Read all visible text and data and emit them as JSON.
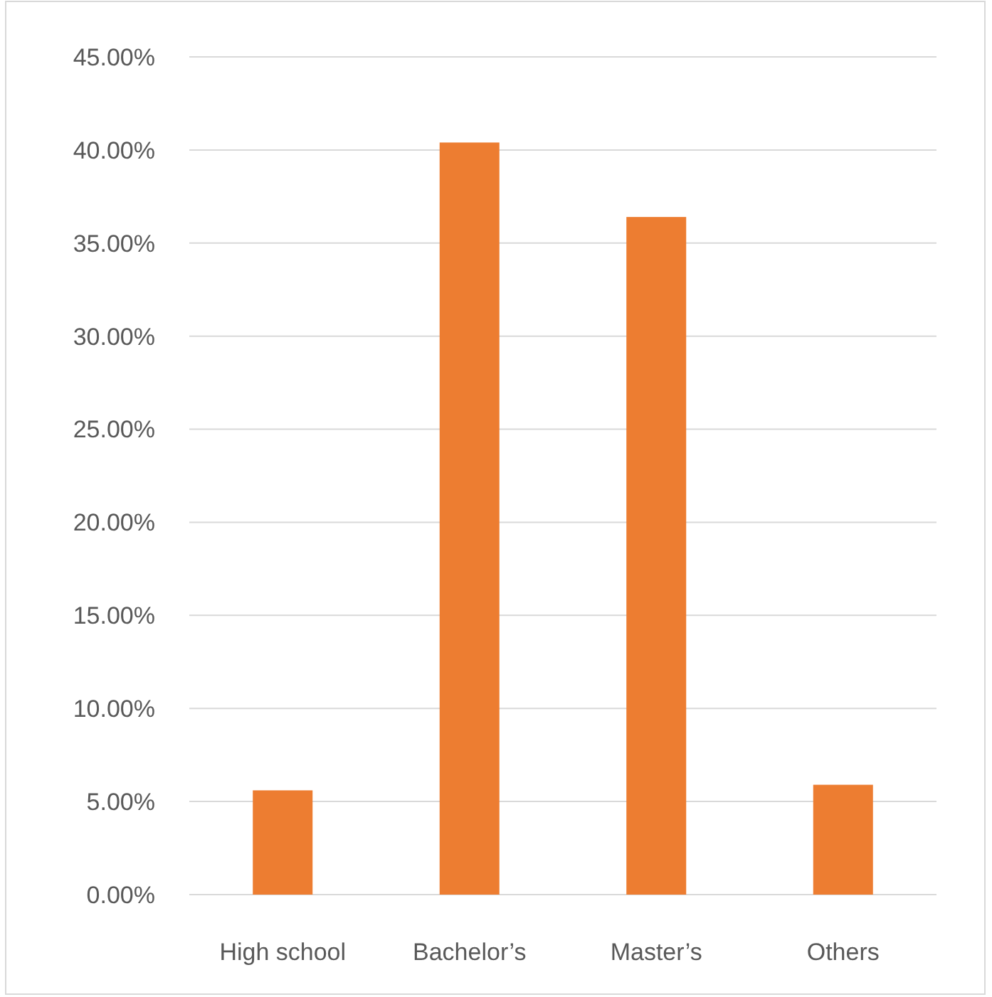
{
  "chart_data": {
    "type": "bar",
    "categories": [
      "High school",
      "Bachelor’s",
      "Master’s",
      "Others"
    ],
    "values": [
      5.6,
      40.4,
      36.4,
      5.9
    ],
    "color": "#ed7d31",
    "ylim": [
      0,
      45
    ],
    "yticks": [
      {
        "value": 0,
        "label": "0.00%"
      },
      {
        "value": 5,
        "label": "5.00%"
      },
      {
        "value": 10,
        "label": "10.00%"
      },
      {
        "value": 15,
        "label": "15.00%"
      },
      {
        "value": 20,
        "label": "20.00%"
      },
      {
        "value": 25,
        "label": "25.00%"
      },
      {
        "value": 30,
        "label": "30.00%"
      },
      {
        "value": 35,
        "label": "35.00%"
      },
      {
        "value": 40,
        "label": "40.00%"
      },
      {
        "value": 45,
        "label": "45.00%"
      }
    ],
    "grid": "y"
  }
}
